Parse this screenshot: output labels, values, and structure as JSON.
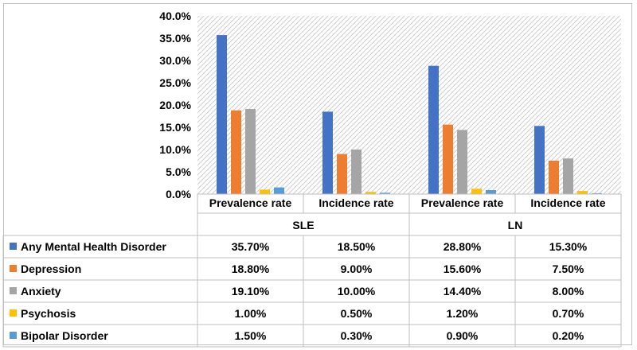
{
  "chart_data": {
    "type": "bar",
    "groups": [
      "SLE",
      "LN"
    ],
    "categories": [
      "Prevalence rate",
      "Incidence rate",
      "Prevalence rate",
      "Incidence rate"
    ],
    "category_groups": [
      0,
      0,
      1,
      1
    ],
    "ylim": [
      0,
      40
    ],
    "ytick_labels": [
      "0.0%",
      "5.0%",
      "10.0%",
      "15.0%",
      "20.0%",
      "25.0%",
      "30.0%",
      "35.0%",
      "40.0%"
    ],
    "grid": false,
    "legend": "data-table",
    "series": [
      {
        "name": "Any Mental Health Disorder",
        "color": "#4472C4",
        "values": [
          35.7,
          18.5,
          28.8,
          15.3
        ],
        "labels": [
          "35.70%",
          "18.50%",
          "28.80%",
          "15.30%"
        ]
      },
      {
        "name": "Depression",
        "color": "#ED7D31",
        "values": [
          18.8,
          9.0,
          15.6,
          7.5
        ],
        "labels": [
          "18.80%",
          "9.00%",
          "15.60%",
          "7.50%"
        ]
      },
      {
        "name": "Anxiety",
        "color": "#A5A5A5",
        "values": [
          19.1,
          10.0,
          14.4,
          8.0
        ],
        "labels": [
          "19.10%",
          "10.00%",
          "14.40%",
          "8.00%"
        ]
      },
      {
        "name": "Psychosis",
        "color": "#FFC000",
        "values": [
          1.0,
          0.5,
          1.2,
          0.7
        ],
        "labels": [
          "1.00%",
          "0.50%",
          "1.20%",
          "0.70%"
        ]
      },
      {
        "name": "Bipolar Disorder",
        "color": "#5B9BD5",
        "values": [
          1.5,
          0.3,
          0.9,
          0.2
        ],
        "labels": [
          "1.50%",
          "0.30%",
          "0.90%",
          "0.20%"
        ]
      }
    ]
  }
}
